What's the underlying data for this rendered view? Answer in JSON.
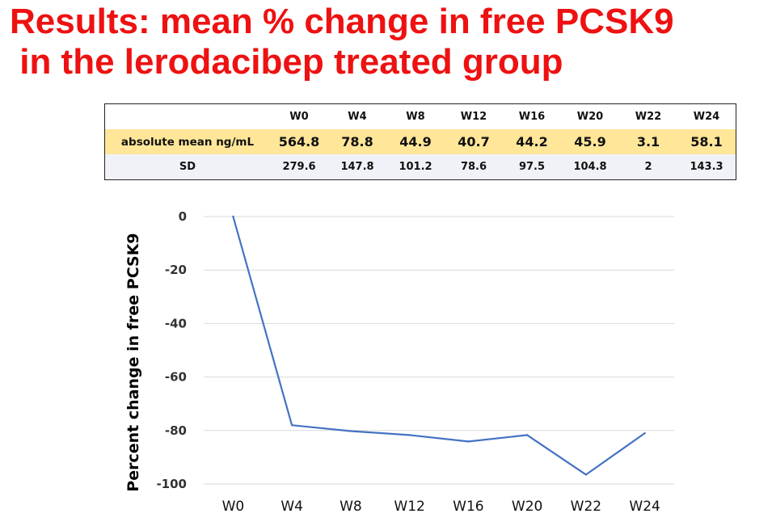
{
  "title": {
    "line1": "Results: mean % change in free PCSK9",
    "line2": " in the lerodacibep treated group"
  },
  "table": {
    "headers": [
      "",
      "W0",
      "W4",
      "W8",
      "W12",
      "W16",
      "W20",
      "W22",
      "W24"
    ],
    "rows": [
      {
        "label": "absolute mean ng/mL",
        "values": [
          "564.8",
          "78.8",
          "44.9",
          "40.7",
          "44.2",
          "45.9",
          "3.1",
          "58.1"
        ]
      },
      {
        "label": "SD",
        "values": [
          "279.6",
          "147.8",
          "101.2",
          "78.6",
          "97.5",
          "104.8",
          "2",
          "143.3"
        ]
      }
    ]
  },
  "colors": {
    "title": "#ee1111",
    "line": "#4472c4",
    "mean_row": "#ffe699",
    "sd_row": "#f0f2f8",
    "grid": "#d9d9d9"
  },
  "chart_data": {
    "type": "line",
    "title": "",
    "xlabel": "",
    "ylabel": "Percent change in free PCSK9",
    "categories": [
      "W0",
      "W4",
      "W8",
      "W12",
      "W16",
      "W20",
      "W22",
      "W24"
    ],
    "series": [
      {
        "name": "mean % change in free PCSK9",
        "values": [
          0,
          -78,
          -80.2,
          -81.7,
          -84.1,
          -81.7,
          -96.5,
          -81
        ]
      }
    ],
    "ylim": [
      -100,
      0
    ],
    "yticks": [
      0,
      -20,
      -40,
      -60,
      -80,
      -100
    ],
    "grid": true,
    "legend": "none"
  }
}
